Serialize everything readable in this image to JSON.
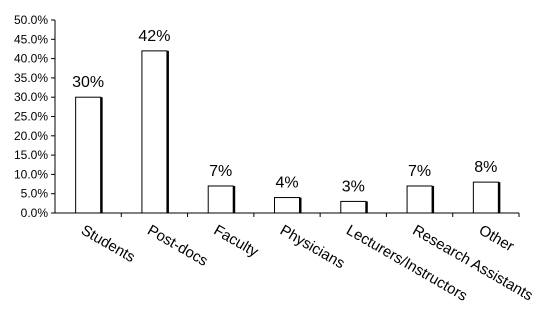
{
  "chart_data": {
    "type": "bar",
    "categories": [
      "Students",
      "Post-docs",
      "Faculty",
      "Physicians",
      "Lecturers/Instructors",
      "Research Assistants",
      "Other"
    ],
    "values": [
      30,
      42,
      7,
      4,
      3,
      7,
      8
    ],
    "data_labels": [
      "30%",
      "42%",
      "7%",
      "4%",
      "3%",
      "7%",
      "8%"
    ],
    "ylim": [
      0,
      50
    ],
    "yticks": [
      0,
      5,
      10,
      15,
      20,
      25,
      30,
      35,
      40,
      45,
      50
    ],
    "ytick_labels": [
      "0.0%",
      "5.0%",
      "10.0%",
      "15.0%",
      "20.0%",
      "25.0%",
      "30.0%",
      "35.0%",
      "40.0%",
      "45.0%",
      "50.0%"
    ],
    "bar_fill": "#ffffff",
    "bar_stroke": "#000000",
    "grid": false,
    "legend": "none"
  }
}
